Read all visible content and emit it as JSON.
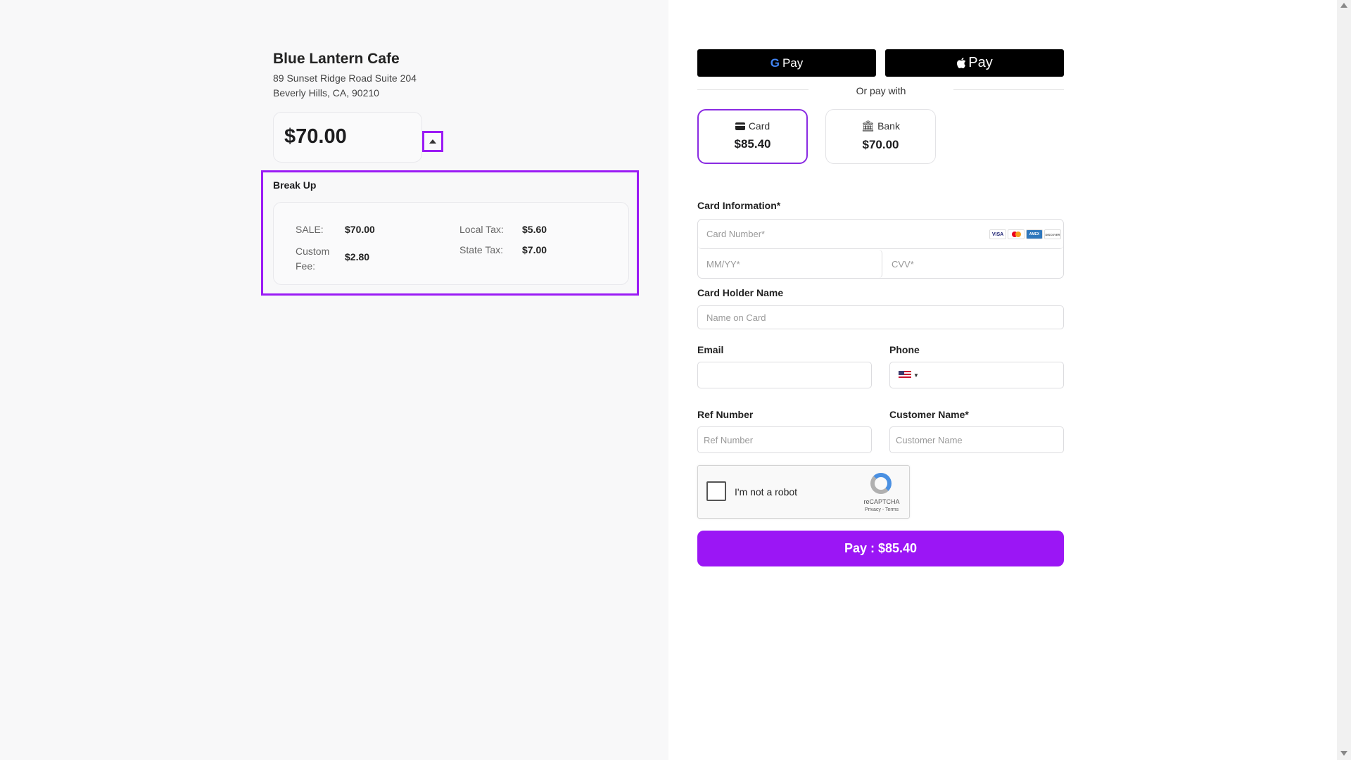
{
  "merchant": {
    "name": "Blue Lantern Cafe",
    "address_line1": "89 Sunset Ridge Road Suite 204",
    "address_line2": "Beverly Hills, CA, 90210"
  },
  "amount": "$70.00",
  "breakup": {
    "title": "Break Up",
    "items": [
      {
        "label": "SALE:",
        "value": "$70.00"
      },
      {
        "label": "Custom Fee:",
        "value": "$2.80"
      },
      {
        "label": "Local Tax:",
        "value": "$5.60"
      },
      {
        "label": "State Tax:",
        "value": "$7.00"
      }
    ]
  },
  "wallets": {
    "google": "Pay",
    "apple": "Pay"
  },
  "or_pay_with": "Or pay with",
  "methods": [
    {
      "label": "Card",
      "amount": "$85.40",
      "selected": true
    },
    {
      "label": "Bank",
      "amount": "$70.00",
      "selected": false
    }
  ],
  "form": {
    "card_info_label": "Card Information*",
    "card_number_placeholder": "Card Number*",
    "expiry_placeholder": "MM/YY*",
    "cvv_placeholder": "CVV*",
    "card_brands": [
      "VISA",
      "Mastercard",
      "AMEX",
      "DISCOVER"
    ],
    "holder_label": "Card Holder Name",
    "holder_placeholder": "Name on Card",
    "email_label": "Email",
    "email_value": "",
    "phone_label": "Phone",
    "phone_value": "",
    "ref_label": "Ref Number",
    "ref_placeholder": "Ref Number",
    "customer_label": "Customer Name*",
    "customer_placeholder": "Customer Name"
  },
  "captcha": {
    "label": "I'm not a robot",
    "brand": "reCAPTCHA",
    "links": "Privacy - Terms"
  },
  "pay_button": "Pay : $85.40",
  "colors": {
    "accent": "#9b16f5",
    "left_bg": "#f8f8f9"
  }
}
